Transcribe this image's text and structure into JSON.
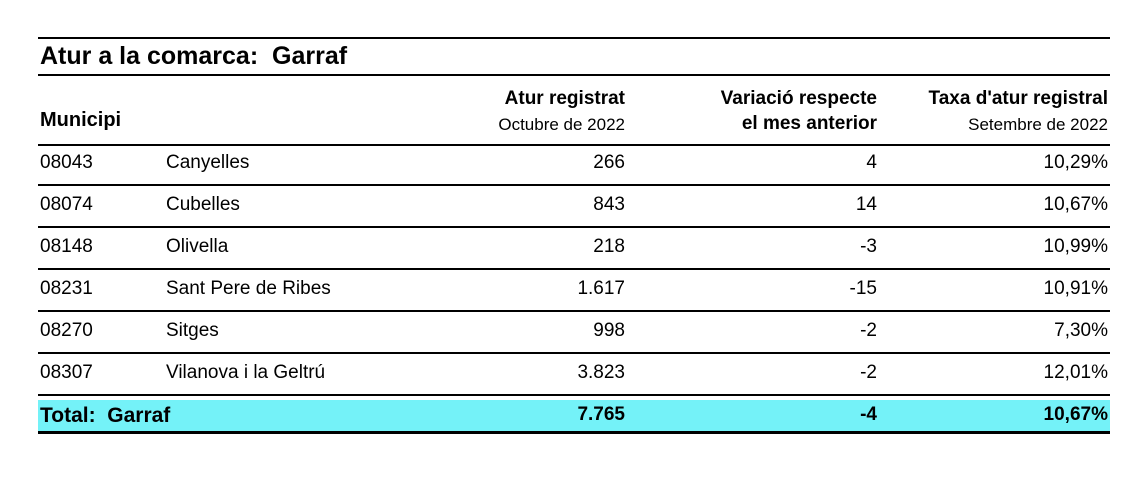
{
  "title": "Atur a la comarca:  Garraf",
  "header": {
    "municipi": "Municipi",
    "columns": [
      {
        "title": "Atur registrat",
        "subtitle": "Octubre de 2022"
      },
      {
        "title": "Variació respecte",
        "title2": "el mes anterior"
      },
      {
        "title": "Taxa d'atur registral",
        "subtitle": "Setembre de 2022"
      }
    ]
  },
  "table": {
    "rows": [
      [
        "08043",
        "Canyelles",
        "266",
        "4",
        "10,29%"
      ],
      [
        "08074",
        "Cubelles",
        "843",
        "14",
        "10,67%"
      ],
      [
        "08148",
        "Olivella",
        "218",
        "-3",
        "10,99%"
      ],
      [
        "08231",
        "Sant Pere de Ribes",
        "1.617",
        "-15",
        "10,91%"
      ],
      [
        "08270",
        "Sitges",
        "998",
        "-2",
        "7,30%"
      ],
      [
        "08307",
        "Vilanova i la Geltrú",
        "3.823",
        "-2",
        "12,01%"
      ]
    ]
  },
  "total": {
    "label": "Total:  Garraf",
    "values": [
      "7.765",
      "-4",
      "10,67%"
    ]
  }
}
